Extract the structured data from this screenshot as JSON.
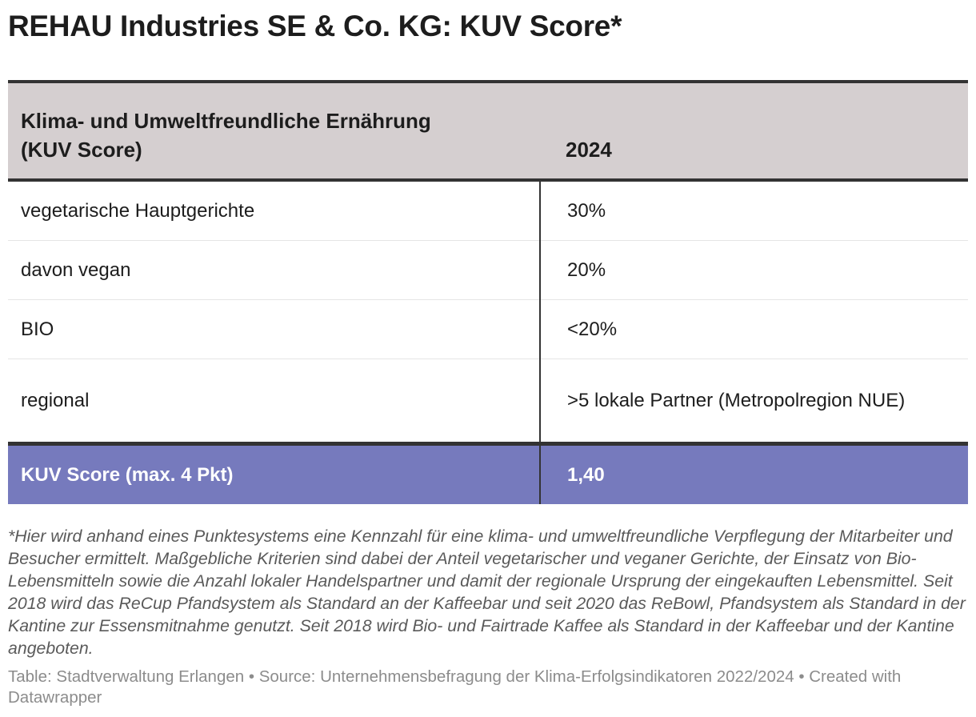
{
  "title": "REHAU Industries SE & Co. KG: KUV Score*",
  "table": {
    "header": {
      "col1_line1": "Klima- und Umweltfreundliche Ernährung",
      "col1_line2": "(KUV Score)",
      "col2": "2024"
    },
    "rows": [
      {
        "label": "vegetarische Hauptgerichte",
        "value": "30%"
      },
      {
        "label": "davon vegan",
        "value": "20%"
      },
      {
        "label": "BIO",
        "value": "<20%"
      },
      {
        "label": "regional",
        "value": ">5 lokale Partner (Metropolregion NUE)"
      }
    ],
    "total": {
      "label": "KUV Score (max. 4 Pkt)",
      "value": "1,40"
    }
  },
  "footnote": "*Hier wird anhand eines Punktesystems eine Kennzahl für eine klima- und umweltfreundliche Verpflegung der Mitarbeiter und Besucher ermittelt. Maßgebliche Kriterien sind dabei der Anteil vegetarischer und veganer Gerichte, der Einsatz von Bio-Lebensmitteln sowie die Anzahl lokaler Handelspartner und damit der regionale Ursprung der eingekauften Lebensmittel. Seit 2018 wird das ReCup Pfandsystem als Standard an der Kaffeebar und seit 2020 das ReBowl, Pfandsystem als Standard in der Kantine zur Essensmitnahme genutzt. Seit 2018 wird Bio- und Fairtrade Kaffee als Standard in der Kaffeebar und der Kantine angeboten.",
  "source": "Table: Stadtverwaltung Erlangen • Source: Unternehmensbefragung der Klima-Erfolgsindikatoren 2022/2024 • Created with Datawrapper",
  "colors": {
    "header_bg": "#d5cfd0",
    "total_bg": "#767abd",
    "rule": "#333333"
  }
}
